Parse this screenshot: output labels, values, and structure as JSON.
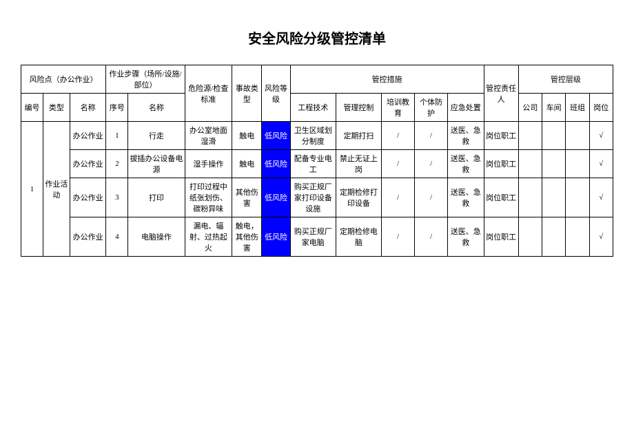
{
  "title": "安全风险分级管控清单",
  "colors": {
    "risk_low_bg": "#0000ff",
    "risk_low_text": "#ffffff",
    "border": "#000000",
    "background": "#ffffff"
  },
  "headers": {
    "risk_point": "风险点（办公作业）",
    "work_step": "作业步骤（场所/设施/部位）",
    "hazard": "危险源/检查标准",
    "accident_type": "事故类型",
    "risk_level": "风险等级",
    "control_measures": "管控措施",
    "responsible": "管控责任人",
    "control_level": "管控层级",
    "seq": "编号",
    "type": "类型",
    "name": "名称",
    "step_no": "序号",
    "step_name": "名称",
    "engineering": "工程技术",
    "management": "管理控制",
    "training": "培训教育",
    "ppe": "个体防护",
    "emergency": "应急处置",
    "level_company": "公司",
    "level_workshop": "车间",
    "level_team": "班组",
    "level_post": "岗位"
  },
  "group": {
    "seq": "1",
    "type": "作业活动"
  },
  "rows": [
    {
      "name": "办公作业",
      "step_no": "1",
      "step_name": "行走",
      "hazard": "办公室地面湿滑",
      "accident": "触电",
      "risk": "低风险",
      "eng": "卫生区域划分制度",
      "mgmt": "定期打扫",
      "train": "/",
      "ppe": "/",
      "emerg": "送医、急救",
      "resp": "岗位职工",
      "lvl_company": "",
      "lvl_workshop": "",
      "lvl_team": "",
      "lvl_post": "√"
    },
    {
      "name": "办公作业",
      "step_no": "2",
      "step_name": "拔插办公设备电源",
      "hazard": "湿手操作",
      "accident": "触电",
      "risk": "低风险",
      "eng": "配备专业电工",
      "mgmt": "禁止无证上岗",
      "train": "/",
      "ppe": "/",
      "emerg": "送医、急救",
      "resp": "岗位职工",
      "lvl_company": "",
      "lvl_workshop": "",
      "lvl_team": "",
      "lvl_post": "√"
    },
    {
      "name": "办公作业",
      "step_no": "3",
      "step_name": "打印",
      "hazard": "打印过程中纸张划伤、碳粉异味",
      "accident": "其他伤害",
      "risk": "低风险",
      "eng": "购买正规厂家打印设备设施",
      "mgmt": "定期检修打印设备",
      "train": "/",
      "ppe": "/",
      "emerg": "送医、急救",
      "resp": "岗位职工",
      "lvl_company": "",
      "lvl_workshop": "",
      "lvl_team": "",
      "lvl_post": "√"
    },
    {
      "name": "办公作业",
      "step_no": "4",
      "step_name": "电脑操作",
      "hazard": "漏电、辐射、过热起火",
      "accident": "触电，其他伤害",
      "risk": "低风险",
      "eng": "购买正规厂家电脑",
      "mgmt": "定期检修电脑",
      "train": "/",
      "ppe": "/",
      "emerg": "送医、急救",
      "resp": "岗位职工",
      "lvl_company": "",
      "lvl_workshop": "",
      "lvl_team": "",
      "lvl_post": "√"
    }
  ]
}
